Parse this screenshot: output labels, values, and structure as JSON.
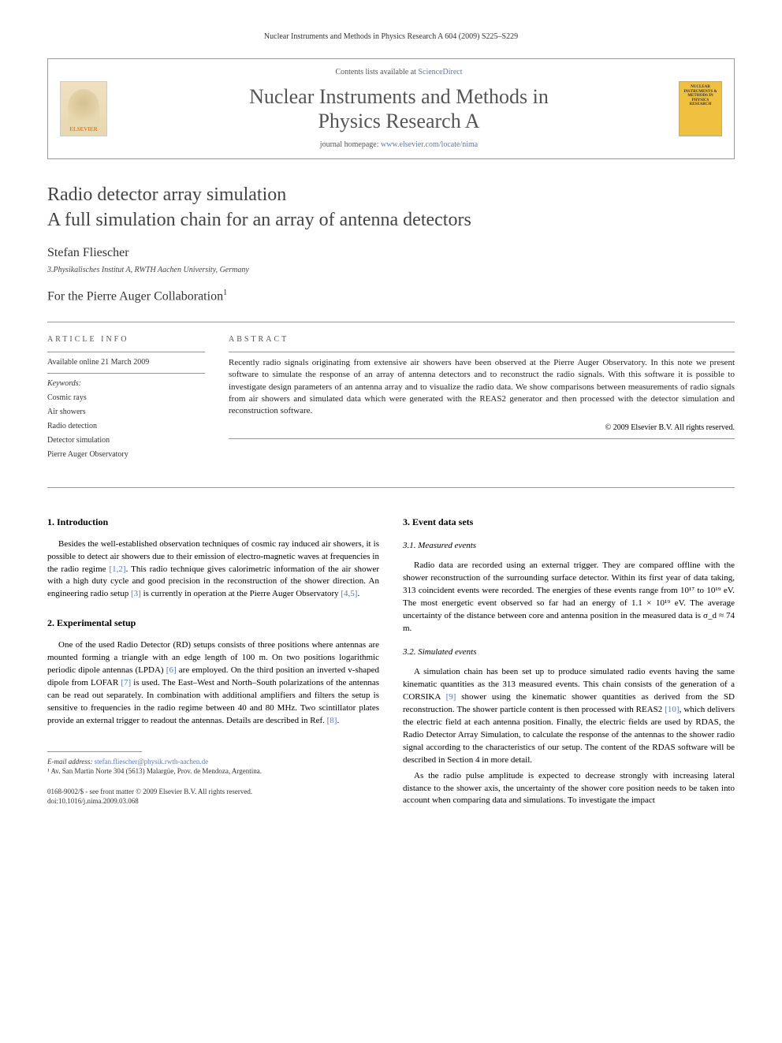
{
  "header_line": "Nuclear Instruments and Methods in Physics Research A 604 (2009) S225–S229",
  "journal_box": {
    "contents_prefix": "Contents lists available at ",
    "contents_link": "ScienceDirect",
    "journal_title_line1": "Nuclear Instruments and Methods in",
    "journal_title_line2": "Physics Research A",
    "homepage_prefix": "journal homepage: ",
    "homepage_link": "www.elsevier.com/locate/nima",
    "publisher": "ELSEVIER",
    "cover_text": "NUCLEAR INSTRUMENTS & METHODS IN PHYSICS RESEARCH"
  },
  "title_line1": "Radio detector array simulation",
  "title_line2": "A full simulation chain for an array of antenna detectors",
  "author": "Stefan Fliescher",
  "affiliation": "3.Physikalisches Institut A, RWTH Aachen University, Germany",
  "collaboration": "For the Pierre Auger Collaboration",
  "collab_sup": "1",
  "article_info": {
    "heading": "ARTICLE INFO",
    "available": "Available online 21 March 2009",
    "keywords_label": "Keywords:",
    "keywords": [
      "Cosmic rays",
      "Air showers",
      "Radio detection",
      "Detector simulation",
      "Pierre Auger Observatory"
    ]
  },
  "abstract": {
    "heading": "ABSTRACT",
    "text": "Recently radio signals originating from extensive air showers have been observed at the Pierre Auger Observatory. In this note we present software to simulate the response of an array of antenna detectors and to reconstruct the radio signals. With this software it is possible to investigate design parameters of an antenna array and to visualize the radio data. We show comparisons between measurements of radio signals from air showers and simulated data which were generated with the REAS2 generator and then processed with the detector simulation and reconstruction software.",
    "copyright": "© 2009 Elsevier B.V. All rights reserved."
  },
  "sections": {
    "s1": {
      "heading": "1. Introduction",
      "p1a": "Besides the well-established observation techniques of cosmic ray induced air showers, it is possible to detect air showers due to their emission of electro-magnetic waves at frequencies in the radio regime ",
      "ref1": "[1,2]",
      "p1b": ". This radio technique gives calorimetric information of the air shower with a high duty cycle and good precision in the reconstruction of the shower direction. An engineering radio setup ",
      "ref2": "[3]",
      "p1c": " is currently in operation at the Pierre Auger Observatory ",
      "ref3": "[4,5]",
      "p1d": "."
    },
    "s2": {
      "heading": "2. Experimental setup",
      "p1a": "One of the used Radio Detector (RD) setups consists of three positions where antennas are mounted forming a triangle with an edge length of 100 m. On two positions logarithmic periodic dipole antennas (LPDA) ",
      "ref1": "[6]",
      "p1b": " are employed. On the third position an inverted v-shaped dipole from LOFAR ",
      "ref2": "[7]",
      "p1c": " is used. The East–West and North–South polarizations of the antennas can be read out separately. In combination with additional amplifiers and filters the setup is sensitive to frequencies in the radio regime between 40 and 80 MHz. Two scintillator plates provide an external trigger to readout the antennas. Details are described in Ref. ",
      "ref3": "[8]",
      "p1d": "."
    },
    "s3": {
      "heading": "3. Event data sets",
      "s31_heading": "3.1. Measured events",
      "s31_p1": "Radio data are recorded using an external trigger. They are compared offline with the shower reconstruction of the surrounding surface detector. Within its first year of data taking, 313 coincident events were recorded. The energies of these events range from 10¹⁷ to 10¹⁹ eV. The most energetic event observed so far had an energy of 1.1 × 10¹⁹ eV. The average uncertainty of the distance between core and antenna position in the measured data is σ_d ≈ 74 m.",
      "s32_heading": "3.2. Simulated events",
      "s32_p1a": "A simulation chain has been set up to produce simulated radio events having the same kinematic quantities as the 313 measured events. This chain consists of the generation of a CORSIKA ",
      "s32_ref1": "[9]",
      "s32_p1b": " shower using the kinematic shower quantities as derived from the SD reconstruction. The shower particle content is then processed with REAS2 ",
      "s32_ref2": "[10]",
      "s32_p1c": ", which delivers the electric field at each antenna position. Finally, the electric fields are used by RDAS, the Radio Detector Array Simulation, to calculate the response of the antennas to the shower radio signal according to the characteristics of our setup. The content of the RDAS software will be described in Section 4 in more detail.",
      "s32_p2": "As the radio pulse amplitude is expected to decrease strongly with increasing lateral distance to the shower axis, the uncertainty of the shower core position needs to be taken into account when comparing data and simulations. To investigate the impact"
    }
  },
  "footnotes": {
    "email_label": "E-mail address: ",
    "email": "stefan.fliescher@physik.rwth-aachen.de",
    "fn1": "¹ Av. San Martin Norte 304 (5613) Malargüe, Prov. de Mendoza, Argentina."
  },
  "bottom": {
    "issn": "0168-9002/$ - see front matter © 2009 Elsevier B.V. All rights reserved.",
    "doi": "doi:10.1016/j.nima.2009.03.068"
  }
}
